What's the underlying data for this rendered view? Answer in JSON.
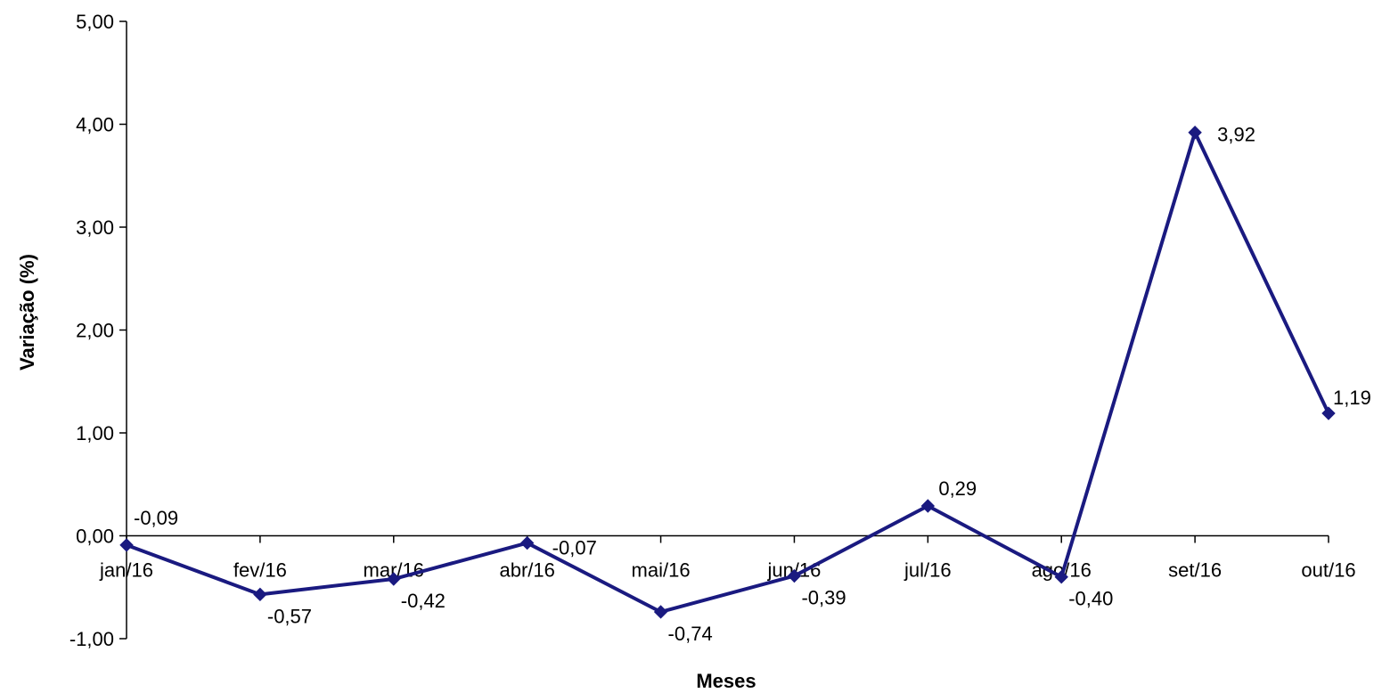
{
  "chart_data": {
    "type": "line",
    "title": "",
    "xlabel": "Meses",
    "ylabel": "Variação (%)",
    "categories": [
      "jan/16",
      "fev/16",
      "mar/16",
      "abr/16",
      "mai/16",
      "jun/16",
      "jul/16",
      "ago/16",
      "set/16",
      "out/16"
    ],
    "values": [
      -0.09,
      -0.57,
      -0.42,
      -0.07,
      -0.74,
      -0.39,
      0.29,
      -0.4,
      3.92,
      1.19
    ],
    "data_labels": [
      "-0,09",
      "-0,57",
      "-0,42",
      "-0,07",
      "-0,74",
      "-0,39",
      "0,29",
      "-0,40",
      "3,92",
      "1,19"
    ],
    "ylim": [
      -1,
      5
    ],
    "yticks": [
      -1,
      0,
      1,
      2,
      3,
      4,
      5
    ],
    "ytick_labels": [
      "-1,00",
      "0,00",
      "1,00",
      "2,00",
      "3,00",
      "4,00",
      "5,00"
    ],
    "grid": false,
    "legend": "none",
    "series_color": "#1a1a80",
    "marker": "diamond"
  }
}
